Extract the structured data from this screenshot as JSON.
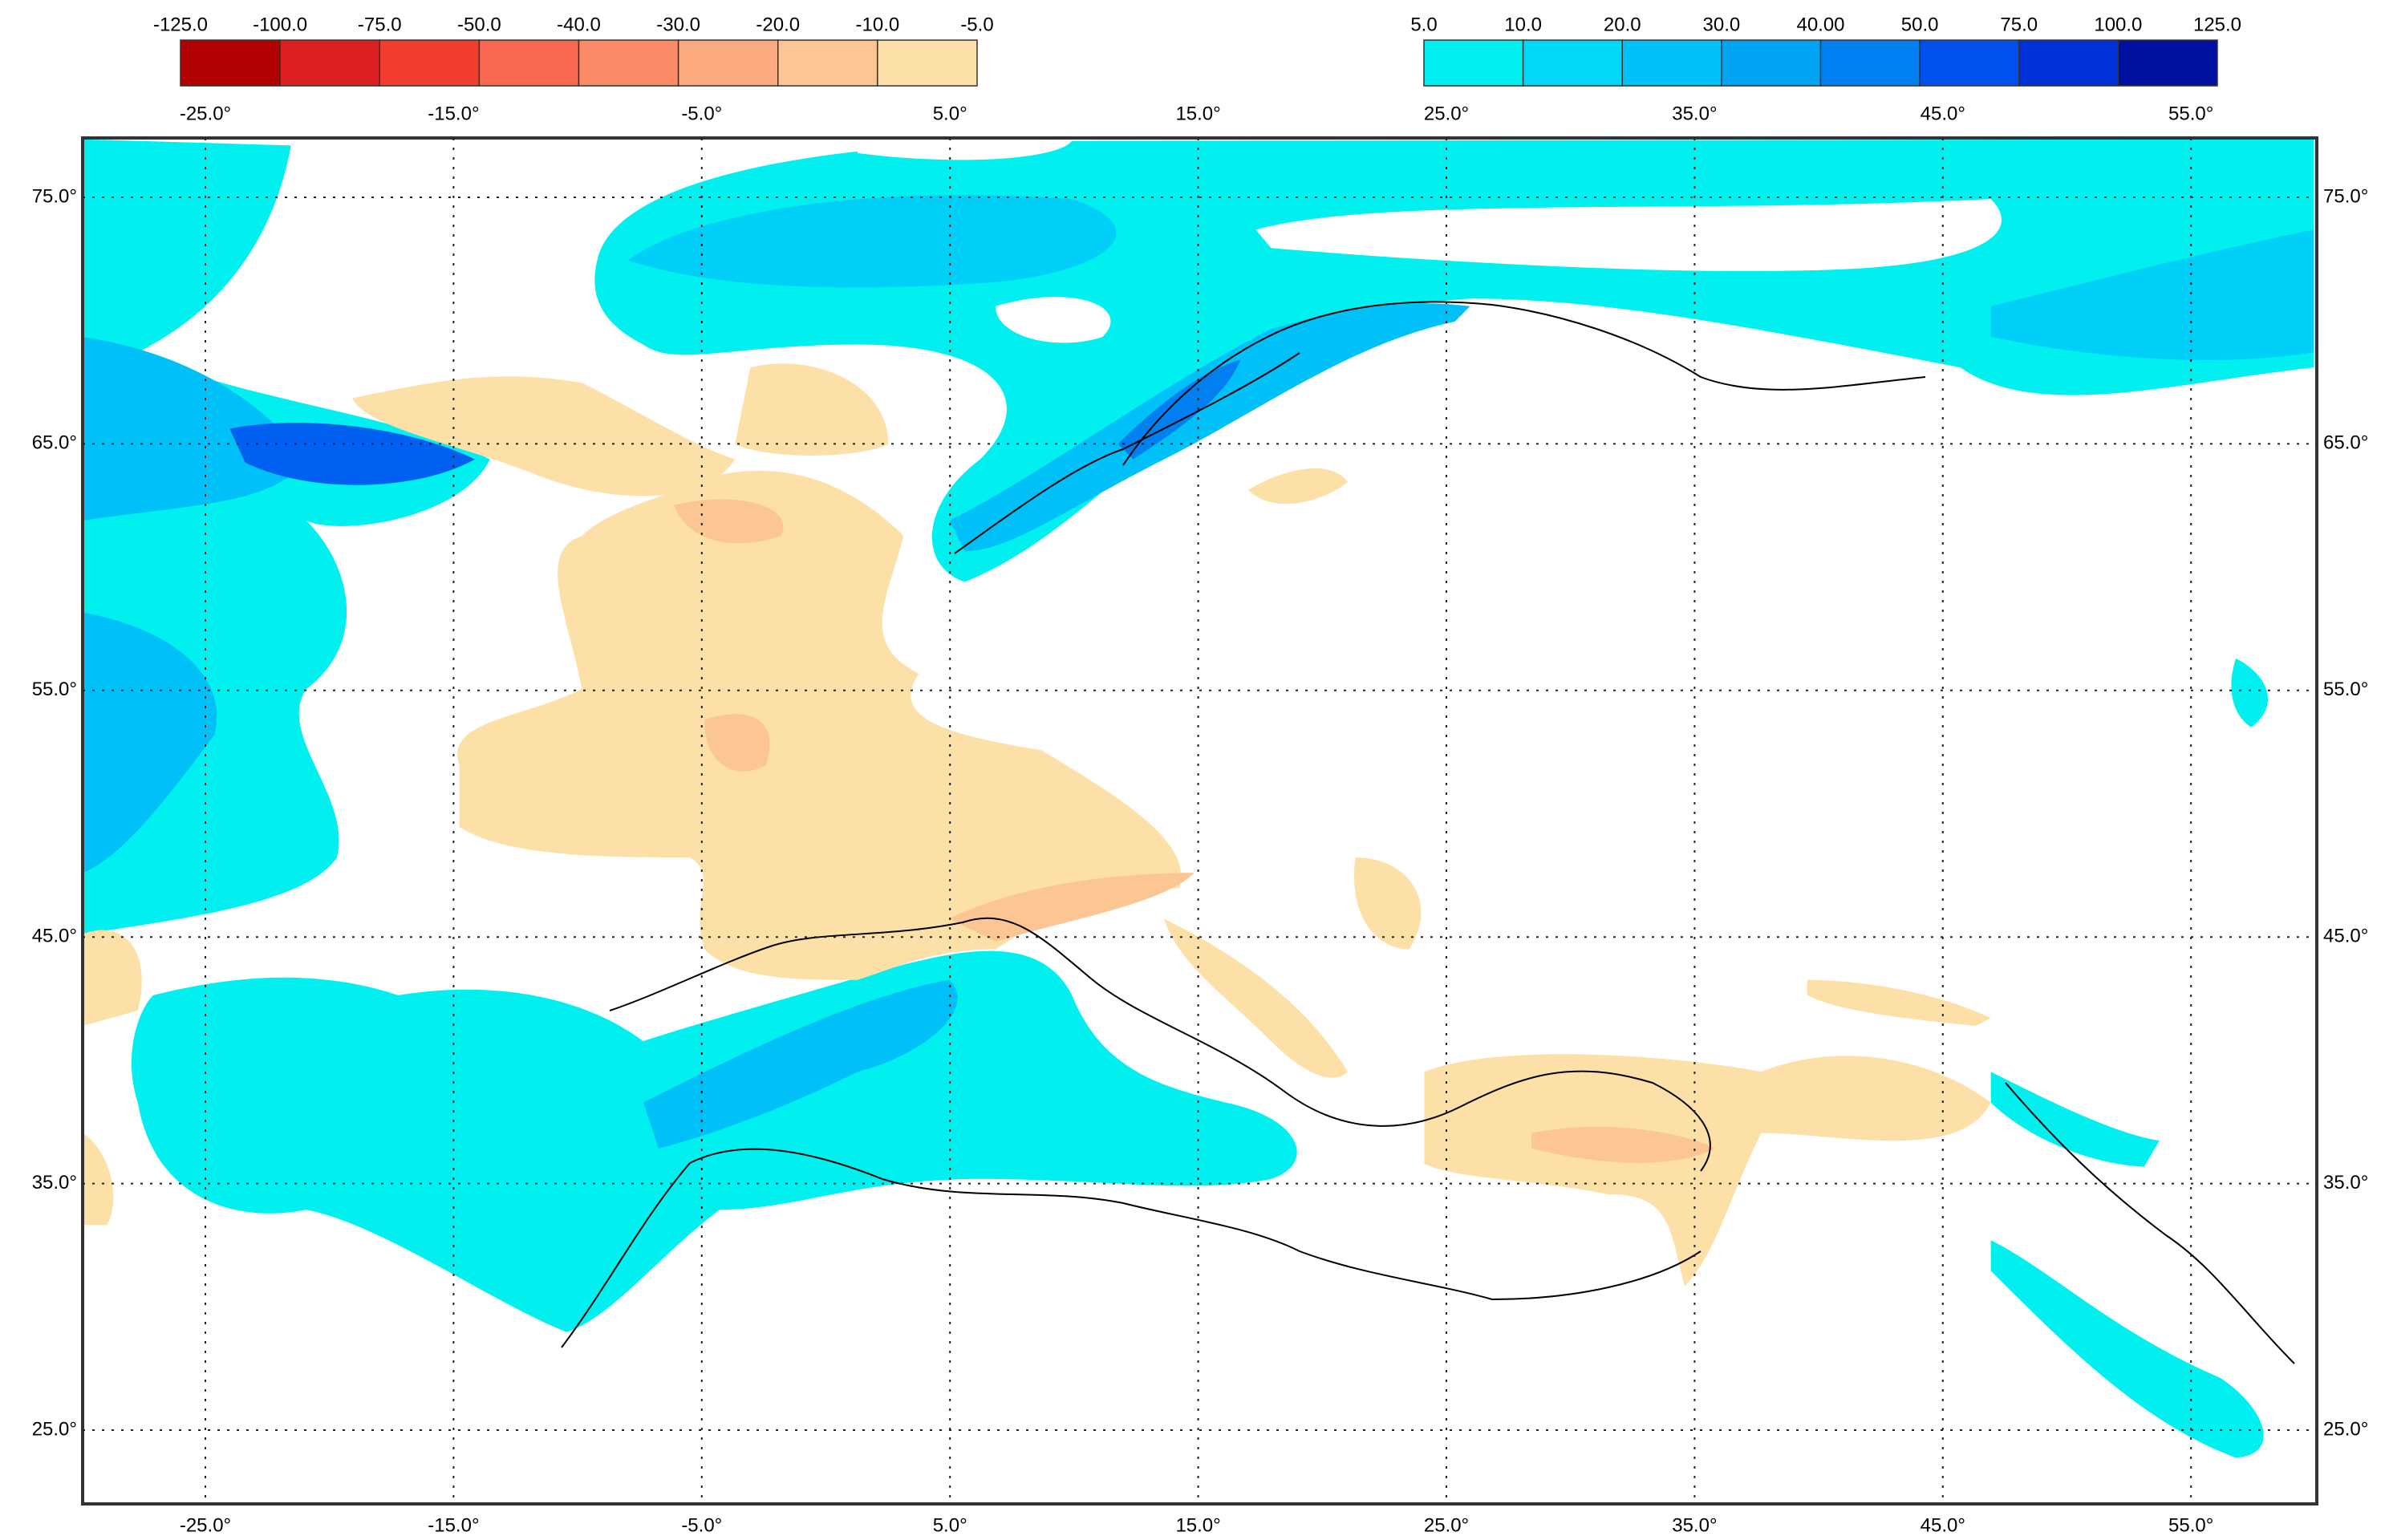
{
  "legend_negative": {
    "labels": [
      "-125.0",
      "-100.0",
      "-75.0",
      "-50.0",
      "-40.0",
      "-30.0",
      "-20.0",
      "-10.0",
      "-5.0"
    ],
    "colors": [
      "#b00000",
      "#dc2020",
      "#f23c2e",
      "#f86850",
      "#fa8a68",
      "#fbaa80",
      "#fcc594",
      "#fde0a8"
    ]
  },
  "legend_positive": {
    "labels": [
      "5.0",
      "10.0",
      "20.0",
      "30.0",
      "40.00",
      "50.0",
      "75.0",
      "100.0",
      "125.0"
    ],
    "colors": [
      "#00f0f0",
      "#00d8f8",
      "#00c0f8",
      "#00a4f2",
      "#0080f0",
      "#0050f0",
      "#0030d8",
      "#0010a0"
    ]
  },
  "map": {
    "lon_ticks": [
      "-25.0°",
      "-15.0°",
      "-5.0°",
      "5.0°",
      "15.0°",
      "25.0°",
      "35.0°",
      "45.0°",
      "55.0°"
    ],
    "lat_ticks": [
      "75.0°",
      "65.0°",
      "55.0°",
      "45.0°",
      "35.0°",
      "25.0°"
    ]
  }
}
